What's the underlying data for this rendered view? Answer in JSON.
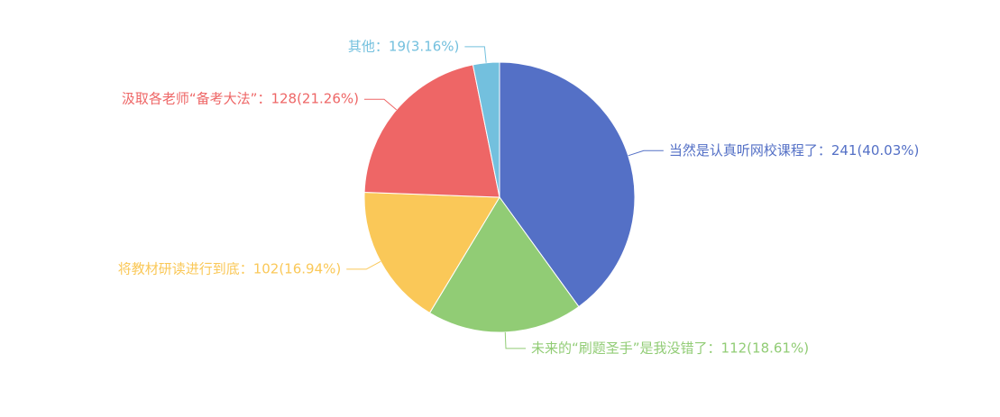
{
  "chart_data": {
    "type": "pie",
    "title": "",
    "series": [
      {
        "values": [
          {
            "name": "当然是认真听网校课程了",
            "value": 241,
            "percent": "40.03%",
            "color": "#5470c6",
            "label": "当然是认真听网校课程了：241(40.03%)"
          },
          {
            "name": "未来的“刷题圣手”是我没错了",
            "value": 112,
            "percent": "18.61%",
            "color": "#91cc75",
            "label": "未来的“刷题圣手”是我没错了：112(18.61%)"
          },
          {
            "name": "将教材研读进行到底",
            "value": 102,
            "percent": "16.94%",
            "color": "#fac858",
            "label": "将教材研读进行到底：102(16.94%)"
          },
          {
            "name": "汲取各老师“备考大法”",
            "value": 128,
            "percent": "21.26%",
            "color": "#ee6666",
            "label": "汲取各老师“备考大法”：128(21.26%)"
          },
          {
            "name": "其他",
            "value": 19,
            "percent": "3.16%",
            "color": "#73c0de",
            "label": "其他：19(3.16%)"
          }
        ]
      }
    ],
    "legend": "none"
  }
}
